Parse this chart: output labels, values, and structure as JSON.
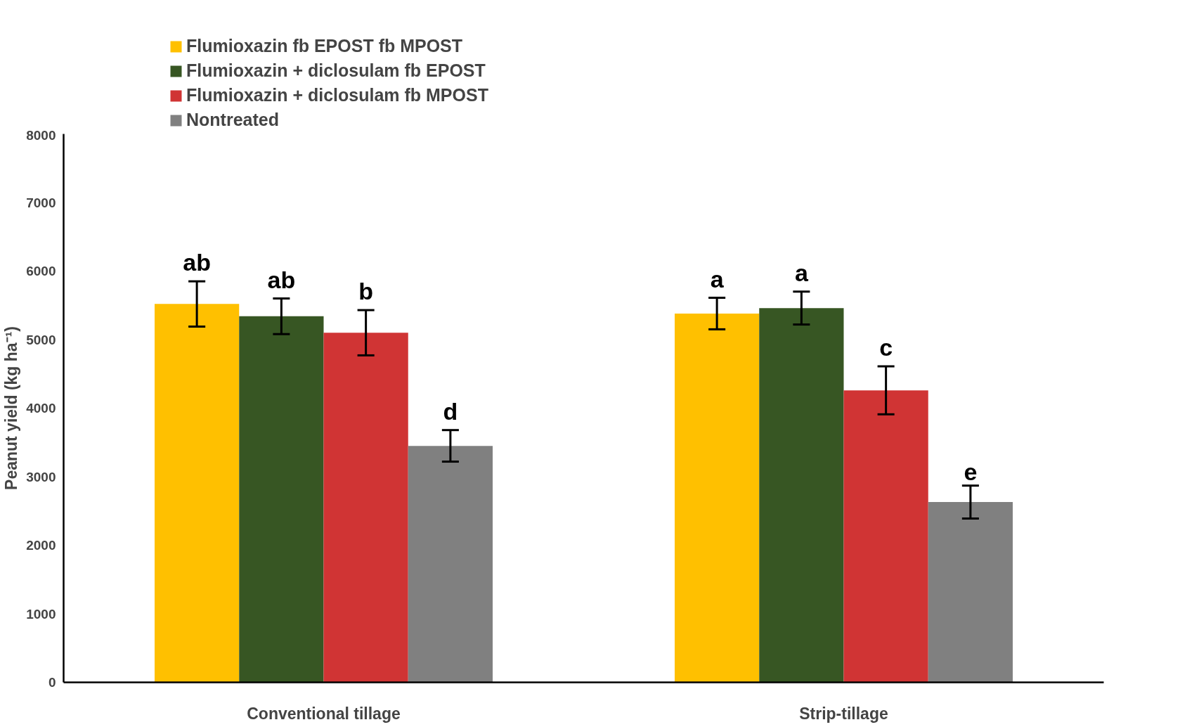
{
  "chart_data": {
    "type": "bar",
    "ylabel": "Peanut yield (kg ha⁻¹)",
    "categories": [
      "Conventional tillage",
      "Strip-tillage"
    ],
    "series": [
      {
        "name": "Flumioxazin fb EPOST fb MPOST",
        "color": "#ffc000",
        "values": [
          5520,
          5380
        ],
        "errors": [
          330,
          230
        ],
        "value_labels": [
          "ab",
          "a"
        ]
      },
      {
        "name": "Flumioxazin + diclosulam fb EPOST",
        "color": "#375623",
        "values": [
          5340,
          5460
        ],
        "errors": [
          260,
          240
        ],
        "value_labels": [
          "ab",
          "a"
        ]
      },
      {
        "name": "Flumioxazin + diclosulam fb MPOST",
        "color": "#d03434",
        "values": [
          5100,
          4260
        ],
        "errors": [
          330,
          350
        ],
        "value_labels": [
          "b",
          "c"
        ]
      },
      {
        "name": "Nontreated",
        "color": "#808080",
        "values": [
          3450,
          2630
        ],
        "errors": [
          230,
          240
        ],
        "value_labels": [
          "d",
          "e"
        ]
      }
    ],
    "ylim": [
      0,
      8000
    ],
    "yticks": [
      0,
      1000,
      2000,
      3000,
      4000,
      5000,
      6000,
      7000,
      8000
    ],
    "grid": false,
    "legend": "top left"
  }
}
